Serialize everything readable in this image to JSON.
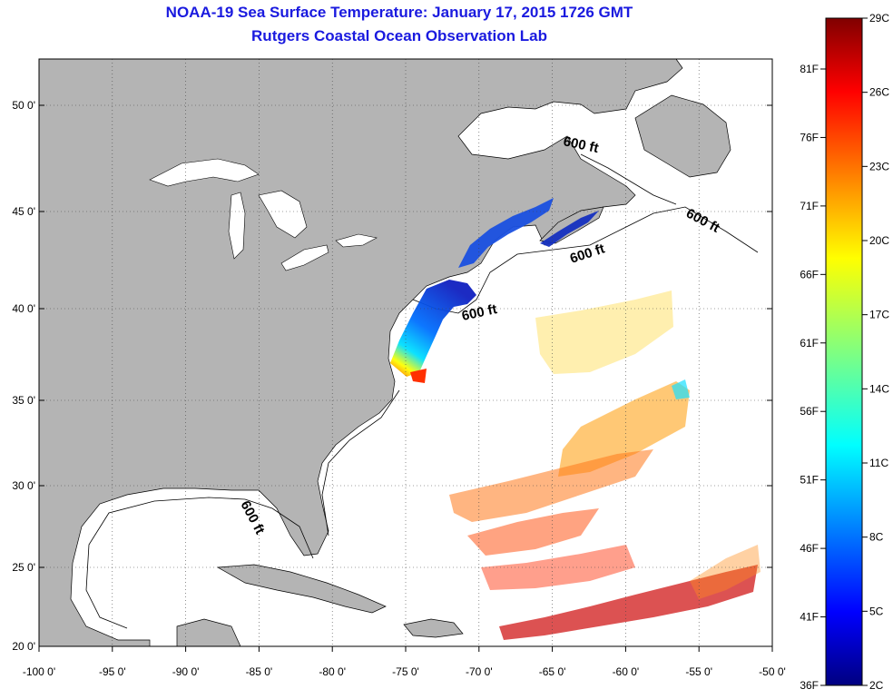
{
  "title": {
    "line1": "NOAA-19 Sea Surface Temperature:  January 17, 2015 1726 GMT",
    "line2": "Rutgers Coastal Ocean Observation Lab"
  },
  "map": {
    "lon_range": [
      -100,
      -50
    ],
    "lat_range": [
      20,
      52
    ],
    "lon_ticks": [
      "-100 0'",
      "-95 0'",
      "-90 0'",
      "-85 0'",
      "-80 0'",
      "-75 0'",
      "-70 0'",
      "-65 0'",
      "-60 0'",
      "-55 0'",
      "-50 0'"
    ],
    "lat_ticks": [
      "50 0'",
      "45 0'",
      "40 0'",
      "35 0'",
      "30 0'",
      "25 0'",
      "20 0'"
    ],
    "grid": "dotted",
    "land_color": "#b4b4b4",
    "ocean_color": "#ffffff",
    "contour_labels": [
      "600 ft",
      "600 ft",
      "600 ft",
      "600 ft",
      "600 ft"
    ]
  },
  "colorbar": {
    "celsius_labels": [
      "29C",
      "26C",
      "23C",
      "20C",
      "17C",
      "14C",
      "11C",
      "8C",
      "5C",
      "2C"
    ],
    "fahrenheit_labels": [
      "81F",
      "76F",
      "71F",
      "66F",
      "61F",
      "56F",
      "51F",
      "46F",
      "41F",
      "36F"
    ],
    "colormap": "jet",
    "colors": [
      "#800000",
      "#ff0000",
      "#ff8000",
      "#ffff00",
      "#80ff80",
      "#00ffff",
      "#0080ff",
      "#0000ff",
      "#000080"
    ]
  }
}
